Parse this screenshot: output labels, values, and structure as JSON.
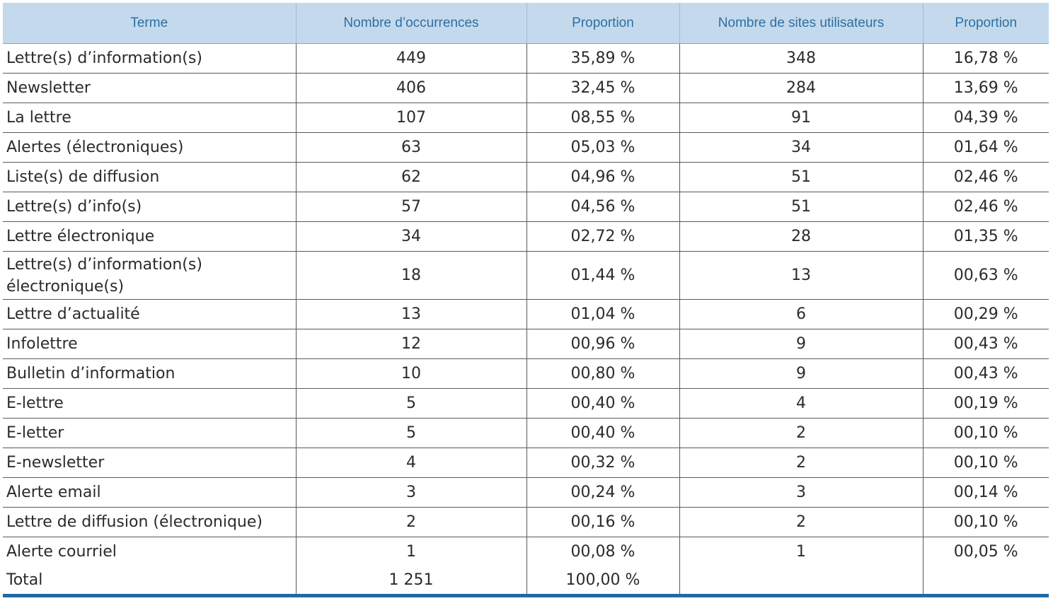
{
  "table": {
    "headers": [
      "Terme",
      "Nombre d’occurrences",
      "Proportion",
      "Nombre de sites utilisateurs",
      "Proportion"
    ],
    "rows": [
      [
        "Lettre(s) d’information(s)",
        "449",
        "35,89 %",
        "348",
        "16,78 %"
      ],
      [
        "Newsletter",
        "406",
        "32,45 %",
        "284",
        "13,69 %"
      ],
      [
        "La lettre",
        "107",
        "08,55 %",
        "91",
        "04,39 %"
      ],
      [
        "Alertes (électroniques)",
        "63",
        "05,03 %",
        "34",
        "01,64 %"
      ],
      [
        "Liste(s) de diffusion",
        "62",
        "04,96 %",
        "51",
        "02,46 %"
      ],
      [
        "Lettre(s) d’info(s)",
        "57",
        "04,56 %",
        "51",
        "02,46 %"
      ],
      [
        "Lettre électronique",
        "34",
        "02,72 %",
        "28",
        "01,35 %"
      ],
      [
        "Lettre(s) d’information(s) électronique(s)",
        "18",
        "01,44 %",
        "13",
        "00,63 %"
      ],
      [
        "Lettre d’actualité",
        "13",
        "01,04 %",
        "6",
        "00,29 %"
      ],
      [
        "Infolettre",
        "12",
        "00,96 %",
        "9",
        "00,43 %"
      ],
      [
        "Bulletin d’information",
        "10",
        "00,80 %",
        "9",
        "00,43 %"
      ],
      [
        "E-lettre",
        "5",
        "00,40 %",
        "4",
        "00,19 %"
      ],
      [
        "E-letter",
        "5",
        "00,40 %",
        "2",
        "00,10 %"
      ],
      [
        "E-newsletter",
        "4",
        "00,32 %",
        "2",
        "00,10 %"
      ],
      [
        "Alerte email",
        "3",
        "00,24 %",
        "3",
        "00,14 %"
      ],
      [
        "Lettre de diffusion (électronique)",
        "2",
        "00,16 %",
        "2",
        "00,10 %"
      ],
      [
        "Alerte courriel",
        "1",
        "00,08 %",
        "1",
        "00,05 %"
      ],
      [
        "Total",
        "1 251",
        "100,00 %",
        "",
        ""
      ]
    ]
  }
}
